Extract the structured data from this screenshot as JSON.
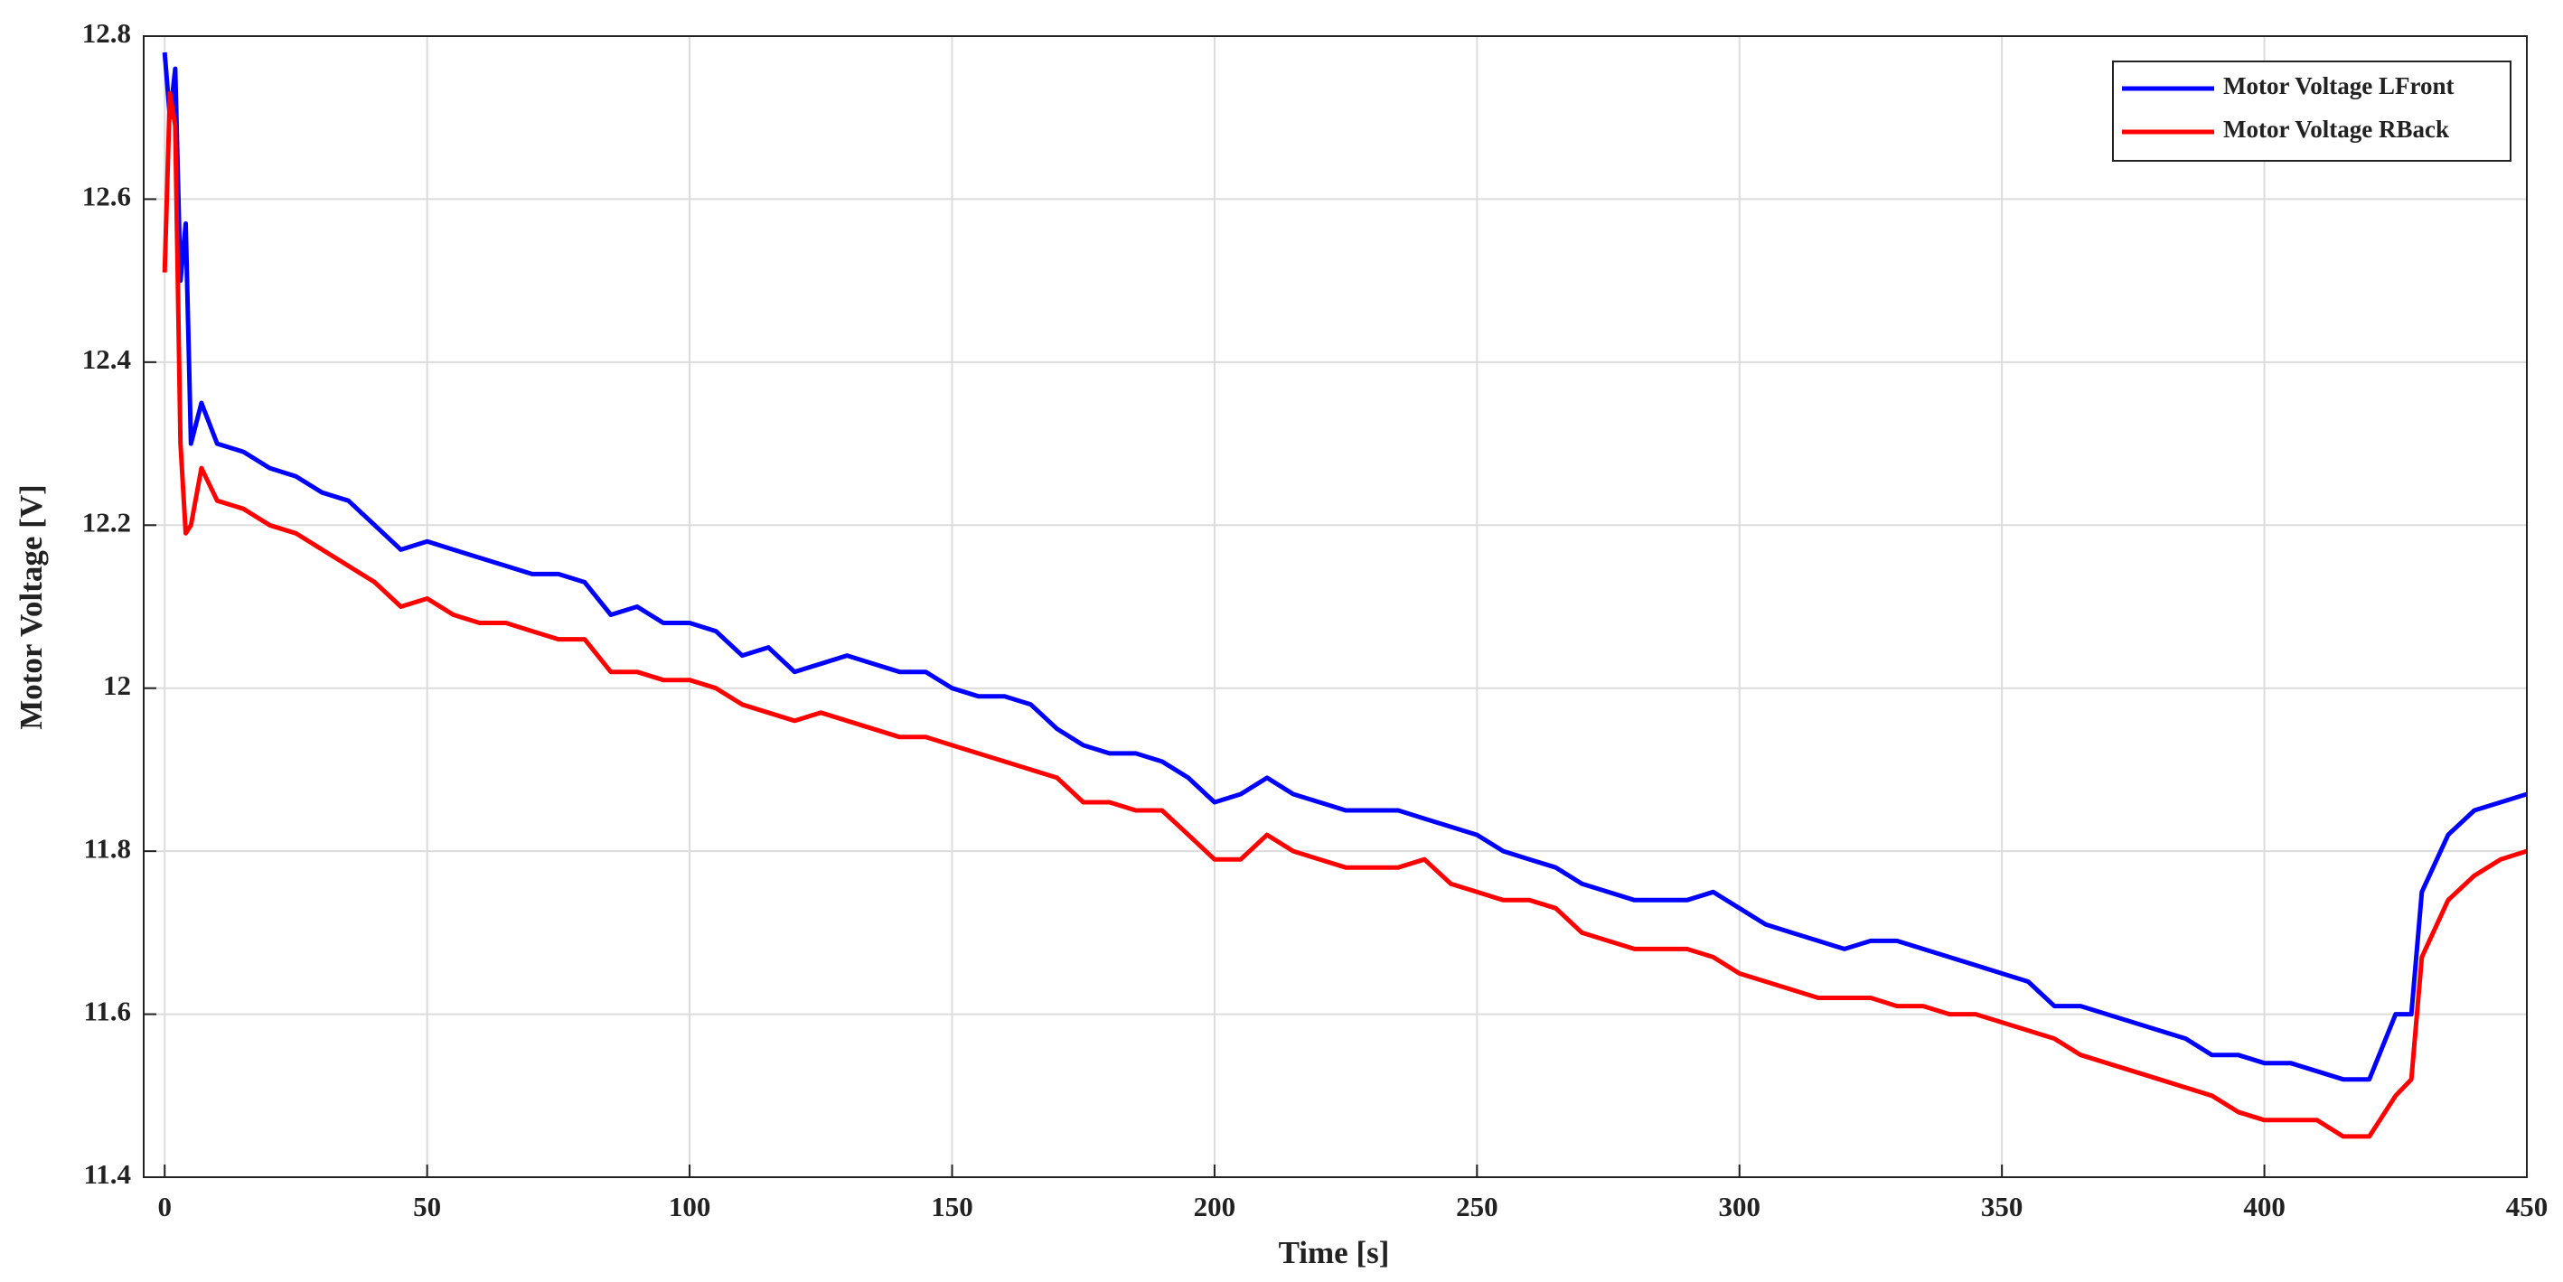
{
  "chart_data": {
    "type": "line",
    "xlabel": "Time [s]",
    "ylabel": "Motor Voltage [V]",
    "x": [
      0,
      1,
      2,
      3,
      4,
      5,
      7,
      10,
      15,
      20,
      25,
      30,
      35,
      40,
      45,
      50,
      55,
      60,
      65,
      70,
      75,
      80,
      85,
      90,
      95,
      100,
      105,
      110,
      115,
      120,
      125,
      130,
      135,
      140,
      145,
      150,
      155,
      160,
      165,
      170,
      175,
      180,
      185,
      190,
      195,
      200,
      205,
      210,
      215,
      220,
      225,
      230,
      235,
      240,
      245,
      250,
      255,
      260,
      265,
      270,
      275,
      280,
      285,
      290,
      295,
      300,
      305,
      310,
      315,
      320,
      325,
      330,
      335,
      340,
      345,
      350,
      355,
      360,
      365,
      370,
      375,
      380,
      385,
      390,
      395,
      400,
      405,
      410,
      415,
      420,
      425,
      428,
      430,
      435,
      440,
      445,
      450
    ],
    "series": [
      {
        "name": "Motor Voltage LFront",
        "color": "#0000ff",
        "values": [
          12.78,
          12.7,
          12.76,
          12.5,
          12.57,
          12.3,
          12.35,
          12.3,
          12.29,
          12.27,
          12.26,
          12.24,
          12.23,
          12.2,
          12.17,
          12.18,
          12.17,
          12.16,
          12.15,
          12.14,
          12.14,
          12.13,
          12.09,
          12.1,
          12.08,
          12.08,
          12.07,
          12.04,
          12.05,
          12.02,
          12.03,
          12.04,
          12.03,
          12.02,
          12.02,
          12.0,
          11.99,
          11.99,
          11.98,
          11.95,
          11.93,
          11.92,
          11.92,
          11.91,
          11.89,
          11.86,
          11.87,
          11.89,
          11.87,
          11.86,
          11.85,
          11.85,
          11.85,
          11.84,
          11.83,
          11.82,
          11.8,
          11.79,
          11.78,
          11.76,
          11.75,
          11.74,
          11.74,
          11.74,
          11.75,
          11.73,
          11.71,
          11.7,
          11.69,
          11.68,
          11.69,
          11.69,
          11.68,
          11.67,
          11.66,
          11.65,
          11.64,
          11.61,
          11.61,
          11.6,
          11.59,
          11.58,
          11.57,
          11.55,
          11.55,
          11.54,
          11.54,
          11.53,
          11.52,
          11.52,
          11.6,
          11.6,
          11.75,
          11.82,
          11.85,
          11.86,
          11.87
        ]
      },
      {
        "name": "Motor Voltage RBack",
        "color": "#ff0000",
        "values": [
          12.51,
          12.73,
          12.69,
          12.3,
          12.19,
          12.2,
          12.27,
          12.23,
          12.22,
          12.2,
          12.19,
          12.17,
          12.15,
          12.13,
          12.1,
          12.11,
          12.09,
          12.08,
          12.08,
          12.07,
          12.06,
          12.06,
          12.02,
          12.02,
          12.01,
          12.01,
          12.0,
          11.98,
          11.97,
          11.96,
          11.97,
          11.96,
          11.95,
          11.94,
          11.94,
          11.93,
          11.92,
          11.91,
          11.9,
          11.89,
          11.86,
          11.86,
          11.85,
          11.85,
          11.82,
          11.79,
          11.79,
          11.82,
          11.8,
          11.79,
          11.78,
          11.78,
          11.78,
          11.79,
          11.76,
          11.75,
          11.74,
          11.74,
          11.73,
          11.7,
          11.69,
          11.68,
          11.68,
          11.68,
          11.67,
          11.65,
          11.64,
          11.63,
          11.62,
          11.62,
          11.62,
          11.61,
          11.61,
          11.6,
          11.6,
          11.59,
          11.58,
          11.57,
          11.55,
          11.54,
          11.53,
          11.52,
          11.51,
          11.5,
          11.48,
          11.47,
          11.47,
          11.47,
          11.45,
          11.45,
          11.5,
          11.52,
          11.67,
          11.74,
          11.77,
          11.79,
          11.8
        ]
      }
    ],
    "xlim": [
      -4,
      450
    ],
    "xticks": [
      0,
      50,
      100,
      150,
      200,
      250,
      300,
      350,
      400,
      450
    ],
    "ylim": [
      11.4,
      12.8
    ],
    "yticks": [
      11.4,
      11.6,
      11.8,
      12,
      12.2,
      12.4,
      12.6,
      12.8
    ],
    "grid": true,
    "legend": "upper right"
  }
}
